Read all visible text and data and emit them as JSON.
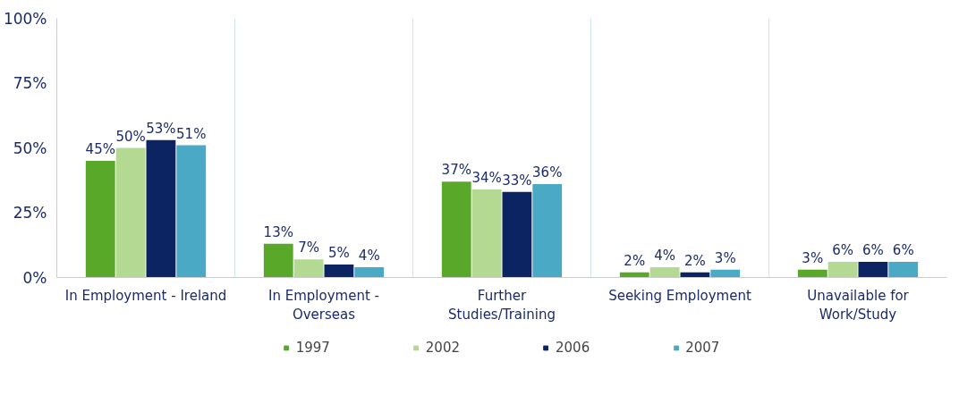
{
  "chart_data": {
    "type": "bar",
    "categories": [
      "In Employment - Ireland",
      "In Employment -\nOverseas",
      "Further\nStudies/Training",
      "Seeking Employment",
      "Unavailable for\nWork/Study"
    ],
    "series": [
      {
        "name": "1997",
        "color": "#5aa82a",
        "values": [
          45,
          13,
          37,
          2,
          3
        ]
      },
      {
        "name": "2002",
        "color": "#b3d993",
        "values": [
          50,
          7,
          34,
          4,
          6
        ]
      },
      {
        "name": "2006",
        "color": "#0c2462",
        "values": [
          53,
          5,
          33,
          2,
          6
        ]
      },
      {
        "name": "2007",
        "color": "#4aaac6",
        "values": [
          51,
          4,
          36,
          3,
          6
        ]
      }
    ],
    "ylim": [
      0,
      100
    ],
    "yticks": [
      {
        "value": 0,
        "label": "0%"
      },
      {
        "value": 25,
        "label": "25%"
      },
      {
        "value": 50,
        "label": "50%"
      },
      {
        "value": 75,
        "label": "75%"
      },
      {
        "value": 100,
        "label": "100%"
      }
    ],
    "value_labels": [
      [
        "45%",
        "13%",
        "37%",
        "2%",
        "3%"
      ],
      [
        "50%",
        "7%",
        "34%",
        "4%",
        "6%"
      ],
      [
        "53%",
        "5%",
        "33%",
        "2%",
        "6%"
      ],
      [
        "51%",
        "4%",
        "36%",
        "3%",
        "6%"
      ]
    ],
    "grid": "x",
    "legend": "bottom"
  }
}
